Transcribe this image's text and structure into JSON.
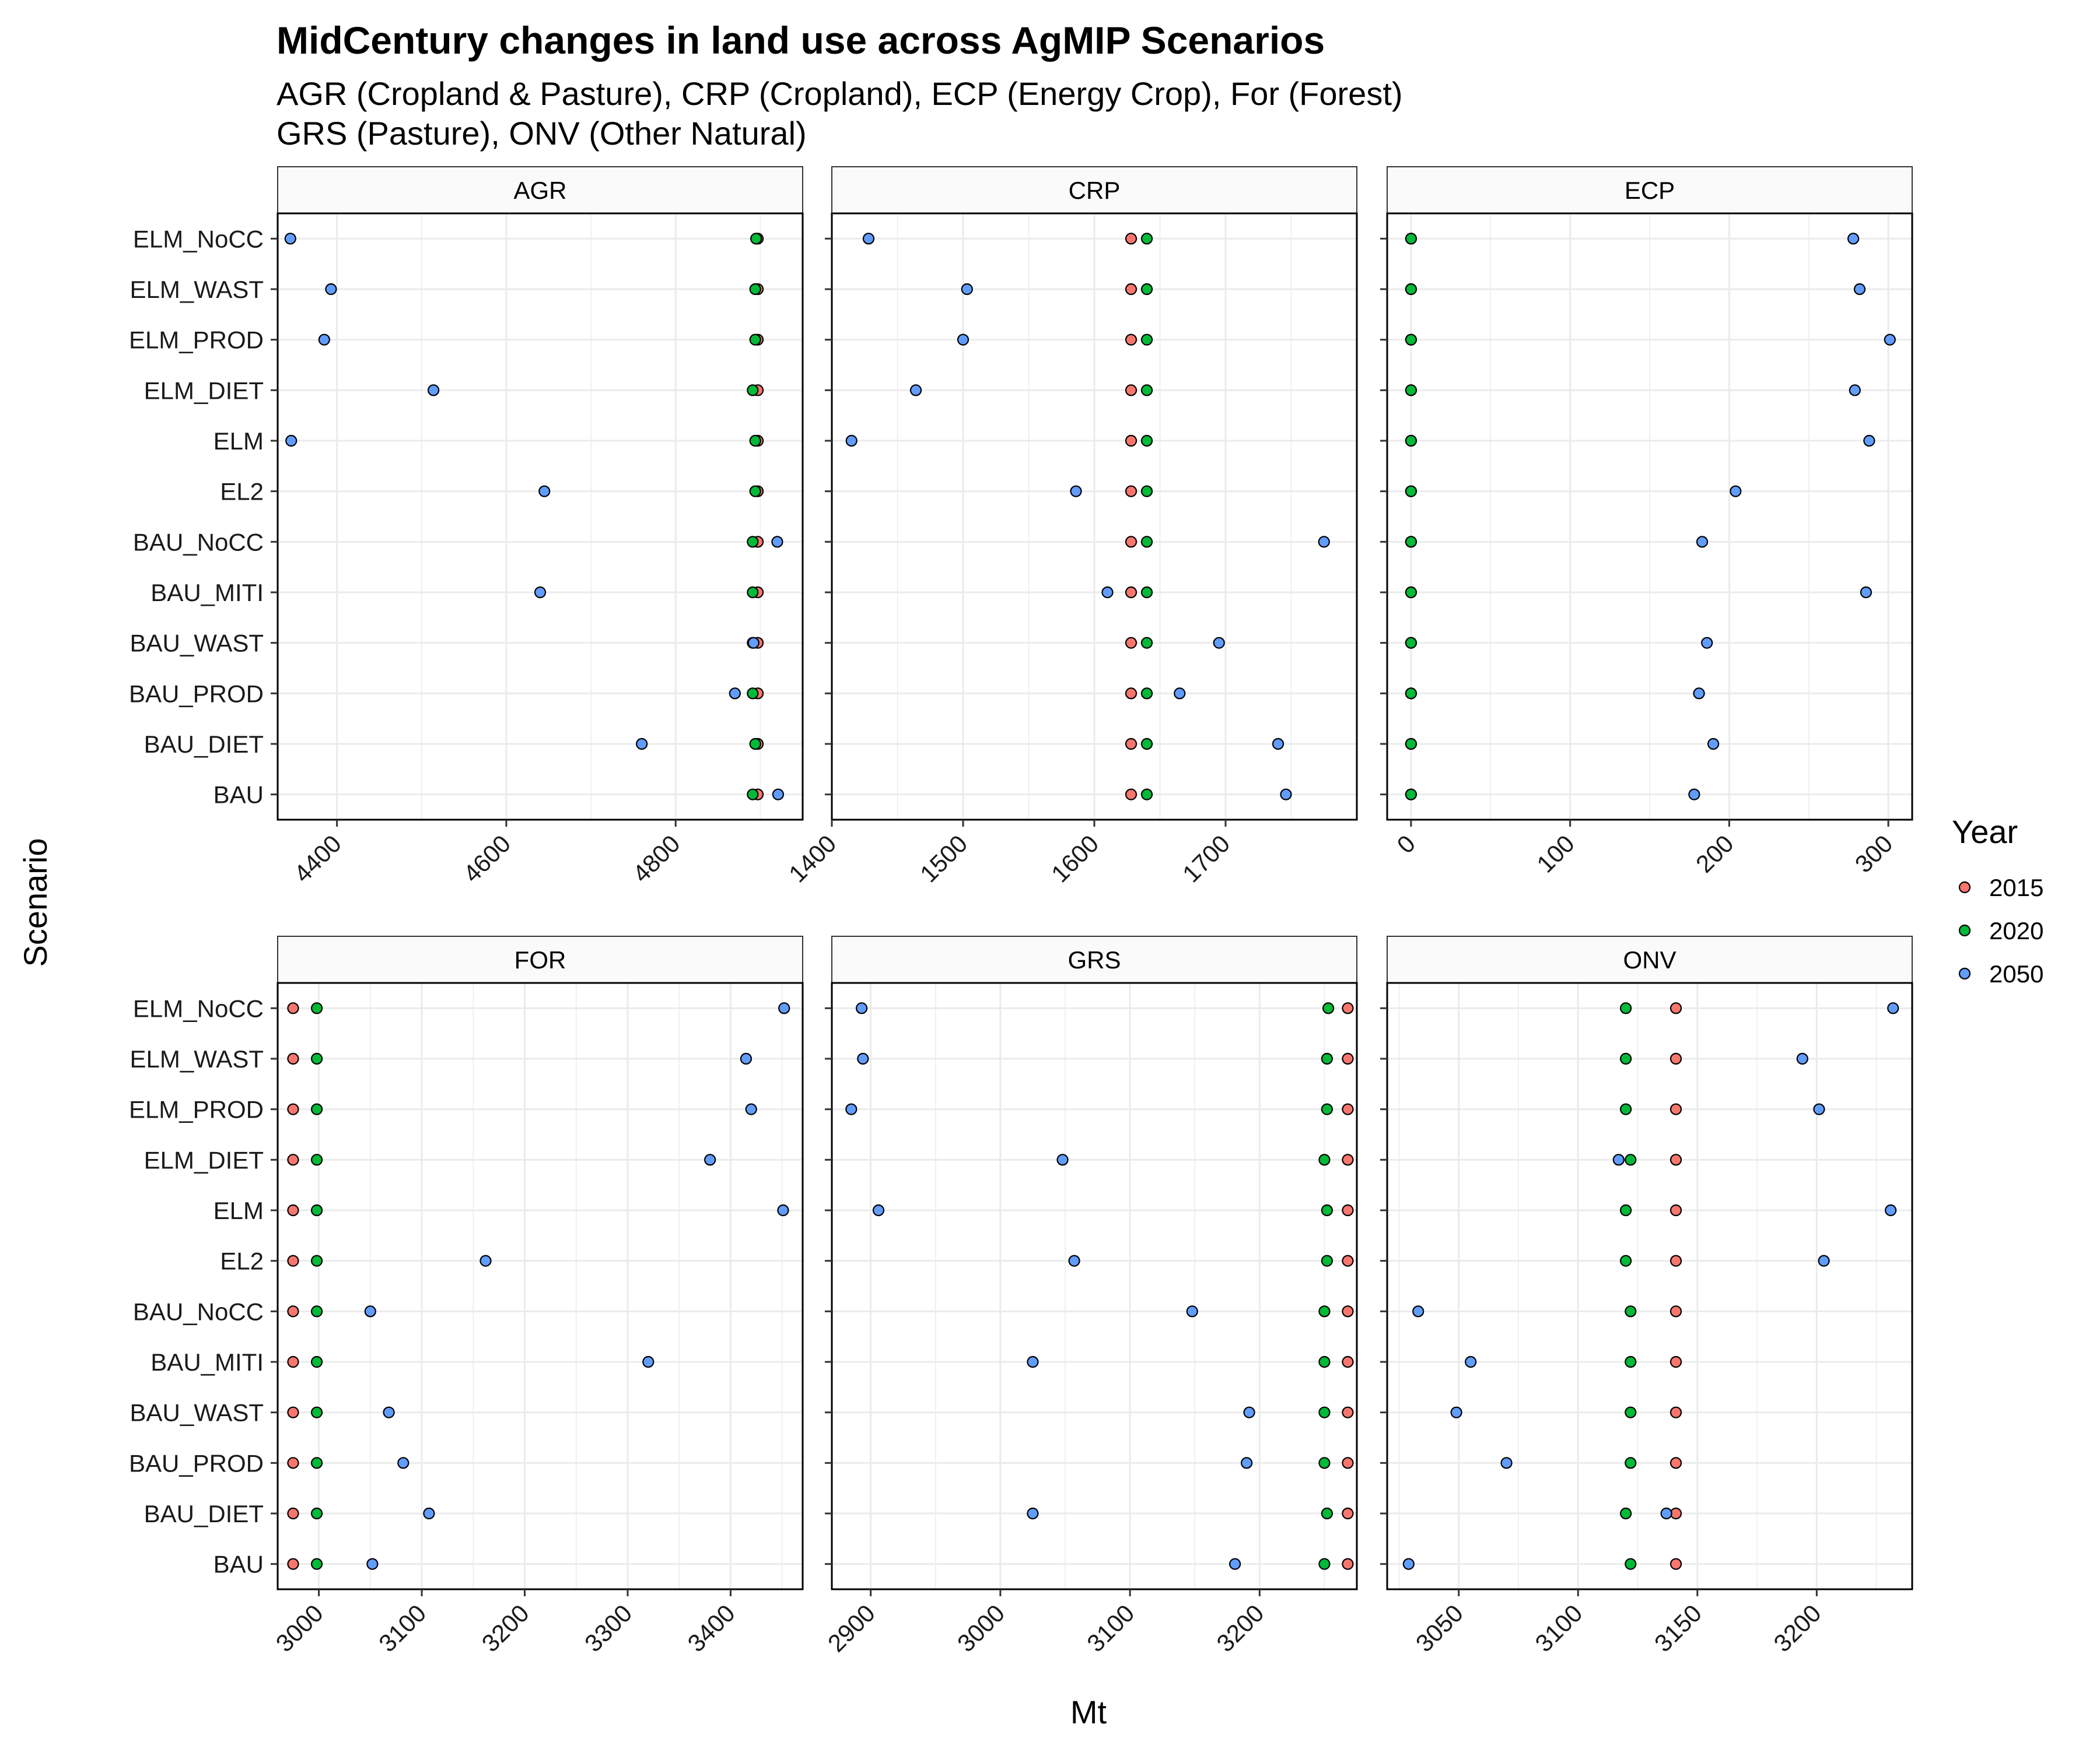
{
  "chart_data": {
    "type": "scatter",
    "title": "MidCentury changes in land use across AgMIP Scenarios",
    "subtitle": [
      "AGR (Cropland & Pasture), CRP (Cropland), ECP (Energy Crop), For (Forest)",
      "GRS (Pasture), ONV (Other Natural)"
    ],
    "xlabel": "Mt",
    "ylabel": "Scenario",
    "legend": {
      "title": "Year",
      "position": "right",
      "entries": [
        {
          "label": "2015",
          "color": "#F8766D"
        },
        {
          "label": "2020",
          "color": "#00BA38"
        },
        {
          "label": "2050",
          "color": "#619CFF"
        }
      ]
    },
    "categories": [
      "ELM_NoCC",
      "ELM_WAST",
      "ELM_PROD",
      "ELM_DIET",
      "ELM",
      "EL2",
      "BAU_NoCC",
      "BAU_MITI",
      "BAU_WAST",
      "BAU_PROD",
      "BAU_DIET",
      "BAU"
    ],
    "grid": true,
    "panels": [
      {
        "name": "AGR",
        "xlim": [
          4330,
          4950
        ],
        "ticks": [
          4400,
          4600,
          4800
        ],
        "series": [
          {
            "year": "2015",
            "values": [
              4897,
              4897,
              4897,
              4897,
              4897,
              4897,
              4897,
              4897,
              4897,
              4897,
              4897,
              4897
            ]
          },
          {
            "year": "2020",
            "values": [
              4895,
              4894,
              4894,
              4891,
              4894,
              4894,
              4891,
              4891,
              4891,
              4891,
              4894,
              4891
            ]
          },
          {
            "year": "2050",
            "values": [
              4345,
              4393,
              4385,
              4514,
              4346,
              4645,
              4920,
              4640,
              4892,
              4870,
              4760,
              4921
            ]
          }
        ]
      },
      {
        "name": "CRP",
        "xlim": [
          1400,
          1800
        ],
        "ticks": [
          1400,
          1500,
          1600,
          1700
        ],
        "series": [
          {
            "year": "2015",
            "values": [
              1628,
              1628,
              1628,
              1628,
              1628,
              1628,
              1628,
              1628,
              1628,
              1628,
              1628,
              1628
            ]
          },
          {
            "year": "2020",
            "values": [
              1640,
              1640,
              1640,
              1640,
              1640,
              1640,
              1640,
              1640,
              1640,
              1640,
              1640,
              1640
            ]
          },
          {
            "year": "2050",
            "values": [
              1428,
              1503,
              1500,
              1464,
              1415,
              1586,
              1775,
              1610,
              1695,
              1665,
              1740,
              1746
            ]
          }
        ]
      },
      {
        "name": "ECP",
        "xlim": [
          -15,
          315
        ],
        "ticks": [
          0,
          100,
          200,
          300
        ],
        "series": [
          {
            "year": "2015",
            "values": [
              0,
              0,
              0,
              0,
              0,
              0,
              0,
              0,
              0,
              0,
              0,
              0
            ]
          },
          {
            "year": "2020",
            "values": [
              0,
              0,
              0,
              0,
              0,
              0,
              0,
              0,
              0,
              0,
              0,
              0
            ]
          },
          {
            "year": "2050",
            "values": [
              278,
              282,
              301,
              279,
              288,
              204,
              183,
              286,
              186,
              181,
              190,
              178
            ]
          }
        ]
      },
      {
        "name": "FOR",
        "xlim": [
          2960,
          3470
        ],
        "ticks": [
          3000,
          3100,
          3200,
          3300,
          3400
        ],
        "series": [
          {
            "year": "2015",
            "values": [
              2975,
              2975,
              2975,
              2975,
              2975,
              2975,
              2975,
              2975,
              2975,
              2975,
              2975,
              2975
            ]
          },
          {
            "year": "2020",
            "values": [
              2998,
              2998,
              2998,
              2998,
              2998,
              2998,
              2998,
              2998,
              2998,
              2998,
              2998,
              2998
            ]
          },
          {
            "year": "2050",
            "values": [
              3452,
              3415,
              3420,
              3380,
              3451,
              3162,
              3050,
              3320,
              3068,
              3082,
              3107,
              3052
            ]
          }
        ]
      },
      {
        "name": "GRS",
        "xlim": [
          2870,
          3275
        ],
        "ticks": [
          2900,
          3000,
          3100,
          3200
        ],
        "series": [
          {
            "year": "2015",
            "values": [
              3268,
              3268,
              3268,
              3268,
              3268,
              3268,
              3268,
              3268,
              3268,
              3268,
              3268,
              3268
            ]
          },
          {
            "year": "2020",
            "values": [
              3253,
              3252,
              3252,
              3250,
              3252,
              3252,
              3250,
              3250,
              3250,
              3250,
              3252,
              3250
            ]
          },
          {
            "year": "2050",
            "values": [
              2893,
              2894,
              2885,
              3048,
              2906,
              3057,
              3148,
              3025,
              3192,
              3190,
              3025,
              3181
            ]
          }
        ]
      },
      {
        "name": "ONV",
        "xlim": [
          3020,
          3240
        ],
        "ticks": [
          3050,
          3100,
          3150,
          3200
        ],
        "series": [
          {
            "year": "2015",
            "values": [
              3141,
              3141,
              3141,
              3141,
              3141,
              3141,
              3141,
              3141,
              3141,
              3141,
              3141,
              3141
            ]
          },
          {
            "year": "2020",
            "values": [
              3120,
              3120,
              3120,
              3122,
              3120,
              3120,
              3122,
              3122,
              3122,
              3122,
              3120,
              3122
            ]
          },
          {
            "year": "2050",
            "values": [
              3232,
              3194,
              3201,
              3117,
              3231,
              3203,
              3033,
              3055,
              3049,
              3070,
              3137,
              3029
            ]
          }
        ]
      }
    ]
  }
}
